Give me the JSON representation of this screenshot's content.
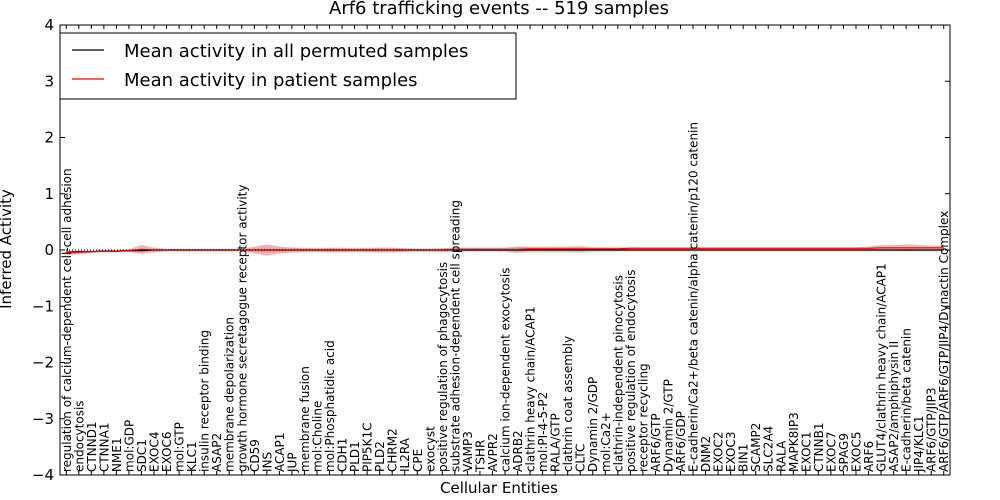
{
  "chart_data": {
    "type": "line",
    "title": "Arf6 trafficking events -- 519 samples",
    "xlabel": "Cellular Entities",
    "ylabel": "Inferred Activity",
    "ylim": [
      -4,
      4
    ],
    "yticks": [
      4,
      3,
      2,
      1,
      0,
      -1,
      -2,
      -3,
      -4
    ],
    "ytick_labels": [
      "4",
      "3",
      "2",
      "1",
      "0",
      "−1",
      "−2",
      "−3",
      "−4"
    ],
    "grid": false,
    "legend_position": "top-left",
    "reference_line": 0,
    "categories": [
      "regulation of calcium-dependent cell-cell adhesion",
      "endocytosis",
      "CTNND1",
      "CTNNA1",
      "NME1",
      "mol:GDP",
      "SDC1",
      "EXOC4",
      "EXOC6",
      "mol:GTP",
      "KLC1",
      "insulin receptor binding",
      "ASAP2",
      "membrane depolarization",
      "growth hormone secretagogue receptor activity",
      "CD59",
      "INS",
      "ACAP1",
      "JUP",
      "membrane fusion",
      "mol:Choline",
      "mol:Phosphatidic acid",
      "CDH1",
      "PLD1",
      "PIP5K1C",
      "PLD2",
      "CHRM2",
      "IL2RA",
      "CPE",
      "exocyst",
      "positive regulation of phagocytosis",
      "substrate adhesion-dependent cell spreading",
      "VAMP3",
      "TSHR",
      "AVPR2",
      "calcium ion-dependent exocytosis",
      "ADRB2",
      "clathrin heavy chain/ACAP1",
      "mol:PI-4-5-P2",
      "RALA/GTP",
      "clathrin coat assembly",
      "CLTC",
      "Dynamin 2/GDP",
      "mol:Ca2+",
      "clathrin-independent pinocytosis",
      "positive regulation of endocytosis",
      "receptor recycling",
      "ARF6/GTP",
      "Dynamin 2/GTP",
      "ARF6/GDP",
      "E-cadherin/Ca2+/beta catenin/alpha catenin/p120 catenin",
      "DNM2",
      "EXOC2",
      "EXOC3",
      "BIN1",
      "SCAMP2",
      "SLC2A4",
      "RALA",
      "MAPK8IP3",
      "EXOC1",
      "CTNNB1",
      "EXOC7",
      "SPAG9",
      "EXOC5",
      "ARF6",
      "GLUT4/clathrin heavy chain/ACAP1",
      "ASAP2/amphiphysin II",
      "E-cadherin/beta catenin",
      "JIP4/KLC1",
      "ARF6/GTP/JIP3",
      "ARF6/GTP/ARF6/GTP/JIP4/Dynactin Complex"
    ],
    "series": [
      {
        "name": "Mean activity in all permuted samples",
        "color": "#000000",
        "band_color": "#b0b0b0",
        "values": [
          -0.04,
          -0.03,
          -0.03,
          -0.02,
          -0.02,
          -0.01,
          -0.01,
          0,
          0,
          0,
          0,
          0,
          0,
          0,
          0,
          0,
          0,
          0,
          0,
          0,
          0,
          0,
          0,
          0,
          0,
          0,
          0,
          0,
          0,
          0,
          0,
          0,
          0,
          0,
          0,
          0,
          0,
          0,
          0,
          0,
          0,
          0,
          0,
          0,
          0,
          0,
          0,
          0,
          0,
          0,
          0,
          0,
          0,
          0,
          0,
          0,
          0,
          0,
          0,
          0,
          0,
          0,
          0,
          0,
          0,
          0,
          0,
          0,
          0,
          0,
          0
        ],
        "spread": [
          0.02,
          0.02,
          0.02,
          0.02,
          0.02,
          0.02,
          0.03,
          0.03,
          0.02,
          0.02,
          0.02,
          0.02,
          0.02,
          0.02,
          0.02,
          0.03,
          0.05,
          0.04,
          0.05,
          0.04,
          0.03,
          0.03,
          0.03,
          0.03,
          0.04,
          0.04,
          0.04,
          0.03,
          0.03,
          0.03,
          0.03,
          0.03,
          0.03,
          0.03,
          0.03,
          0.04,
          0.06,
          0.05,
          0.05,
          0.05,
          0.05,
          0.05,
          0.04,
          0.04,
          0.03,
          0.03,
          0.03,
          0.03,
          0.03,
          0.03,
          0.03,
          0.03,
          0.03,
          0.03,
          0.03,
          0.03,
          0.03,
          0.03,
          0.03,
          0.03,
          0.03,
          0.03,
          0.03,
          0.03,
          0.03,
          0.03,
          0.03,
          0.03,
          0.03,
          0.03,
          0.03
        ]
      },
      {
        "name": "Mean activity in patient samples",
        "color": "#ff0000",
        "band_color": "#f08080",
        "values": [
          -0.05,
          -0.04,
          -0.03,
          -0.02,
          -0.02,
          -0.01,
          0.01,
          0,
          0,
          0,
          0,
          0,
          0,
          0,
          0,
          0,
          0,
          0,
          0,
          0,
          0,
          0,
          0,
          0,
          0,
          0,
          0,
          0,
          0,
          0,
          0,
          0.01,
          0.01,
          0.01,
          0.01,
          0.01,
          0.01,
          0.02,
          0.02,
          0.02,
          0.02,
          0.02,
          0.02,
          0.02,
          0.02,
          0.03,
          0.03,
          0.03,
          0.03,
          0.03,
          0.03,
          0.03,
          0.03,
          0.03,
          0.03,
          0.03,
          0.03,
          0.03,
          0.03,
          0.03,
          0.03,
          0.03,
          0.03,
          0.03,
          0.03,
          0.04,
          0.04,
          0.04,
          0.04,
          0.04,
          0.04
        ],
        "spread": [
          0.04,
          0.03,
          0.02,
          0.02,
          0.02,
          0.02,
          0.08,
          0.04,
          0.02,
          0.02,
          0.02,
          0.02,
          0.02,
          0.02,
          0.02,
          0.06,
          0.1,
          0.06,
          0.04,
          0.03,
          0.03,
          0.04,
          0.04,
          0.03,
          0.03,
          0.04,
          0.04,
          0.03,
          0.02,
          0.02,
          0.03,
          0.04,
          0.03,
          0.03,
          0.03,
          0.03,
          0.05,
          0.04,
          0.04,
          0.04,
          0.04,
          0.05,
          0.03,
          0.03,
          0.03,
          0.02,
          0.02,
          0.02,
          0.02,
          0.02,
          0.02,
          0.02,
          0.02,
          0.02,
          0.02,
          0.02,
          0.02,
          0.02,
          0.02,
          0.02,
          0.02,
          0.02,
          0.02,
          0.02,
          0.03,
          0.05,
          0.05,
          0.06,
          0.05,
          0.04,
          0.04
        ]
      }
    ]
  }
}
